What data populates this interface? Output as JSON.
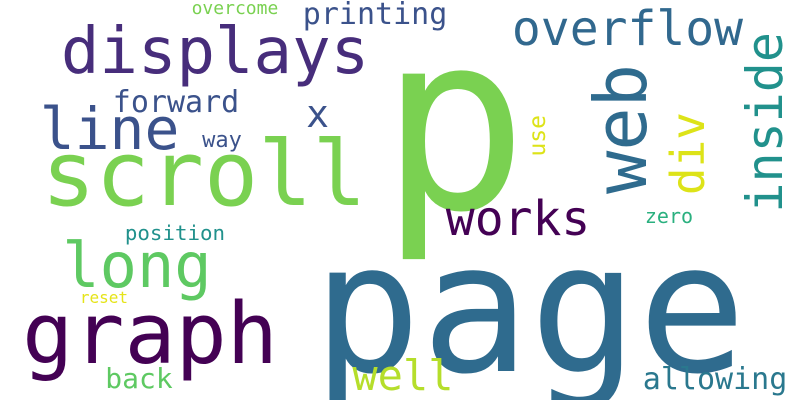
{
  "words": [
    {
      "id": "p",
      "text": "p",
      "color": "#7ad151"
    },
    {
      "id": "page",
      "text": "page",
      "color": "#2f6b8e"
    },
    {
      "id": "scroll",
      "text": "scroll",
      "color": "#7ad151"
    },
    {
      "id": "graph",
      "text": "graph",
      "color": "#440154"
    },
    {
      "id": "displays",
      "text": "displays",
      "color": "#472d7b"
    },
    {
      "id": "web",
      "text": "web",
      "color": "#2f6b8e"
    },
    {
      "id": "line",
      "text": "line",
      "color": "#3b528b"
    },
    {
      "id": "overflow",
      "text": "overflow",
      "color": "#31688e"
    },
    {
      "id": "inside",
      "text": "inside",
      "color": "#21918c"
    },
    {
      "id": "long",
      "text": "long",
      "color": "#5ec962"
    },
    {
      "id": "works",
      "text": "works",
      "color": "#440154"
    },
    {
      "id": "div",
      "text": "div",
      "color": "#dde318"
    },
    {
      "id": "well",
      "text": "well",
      "color": "#b5de2b"
    },
    {
      "id": "x",
      "text": "x",
      "color": "#3b528b"
    },
    {
      "id": "forward",
      "text": "forward",
      "color": "#3b528b"
    },
    {
      "id": "printing",
      "text": "printing",
      "color": "#3b528b"
    },
    {
      "id": "allowing",
      "text": "allowing",
      "color": "#2a788e"
    },
    {
      "id": "back",
      "text": "back",
      "color": "#5ec962"
    },
    {
      "id": "position",
      "text": "position",
      "color": "#21918c"
    },
    {
      "id": "overcome",
      "text": "overcome",
      "color": "#7ad151"
    },
    {
      "id": "way",
      "text": "way",
      "color": "#3b528b"
    },
    {
      "id": "use",
      "text": "use",
      "color": "#dde318"
    },
    {
      "id": "zero",
      "text": "zero",
      "color": "#2ab07f"
    },
    {
      "id": "reset",
      "text": "reset",
      "color": "#e5e419"
    }
  ]
}
